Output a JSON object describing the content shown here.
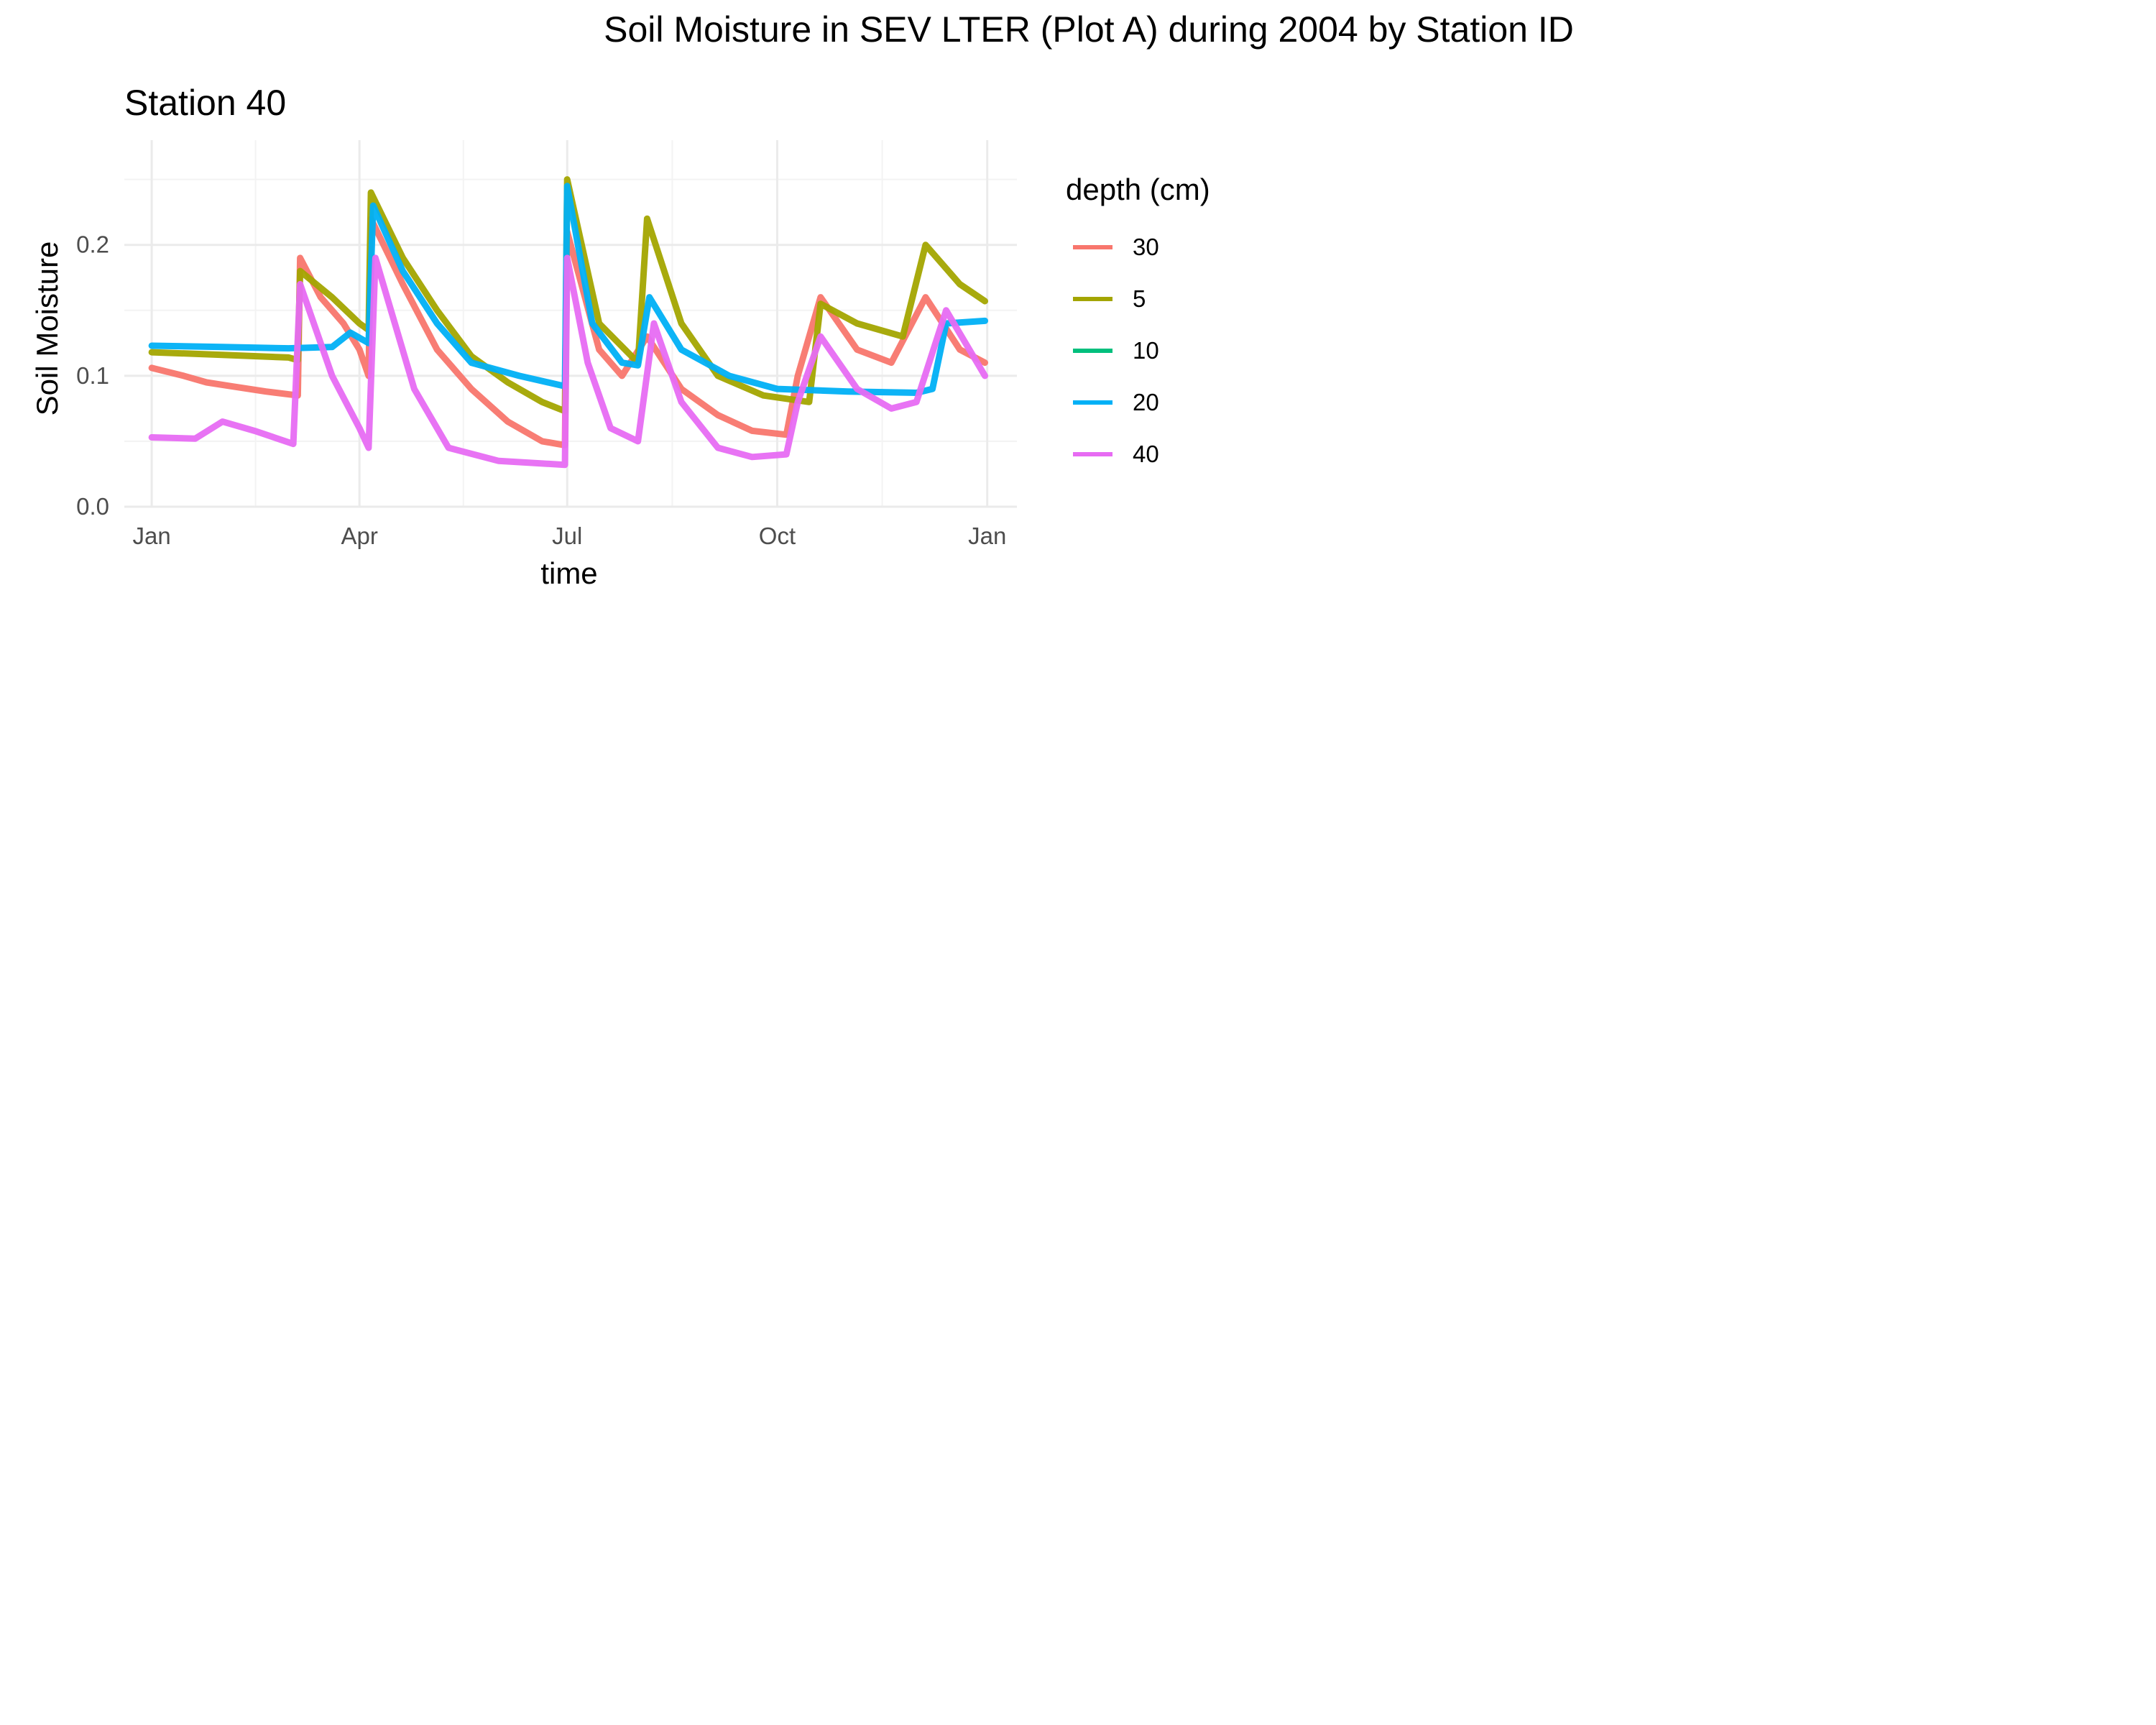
{
  "chart_data": {
    "type": "line",
    "title": "Soil Moisture in SEV LTER (Plot A) during 2004 by Station ID",
    "subtitle": "Station  40",
    "xlabel": "time",
    "ylabel": "Soil Moisture",
    "x_ticks": [
      {
        "label": "Jan",
        "date": "2004-01-01"
      },
      {
        "label": "Apr",
        "date": "2004-04-01"
      },
      {
        "label": "Jul",
        "date": "2004-07-01"
      },
      {
        "label": "Oct",
        "date": "2004-10-01"
      },
      {
        "label": "Jan",
        "date": "2005-01-01"
      }
    ],
    "x_range": [
      "2003-12-20",
      "2005-01-14"
    ],
    "y_ticks": [
      "0.0",
      "0.1",
      "0.2"
    ],
    "ylim": [
      0,
      0.28
    ],
    "grid": true,
    "legend": {
      "title": "depth (cm)",
      "placement": "right"
    },
    "series": [
      {
        "name": "30",
        "color": "#F8766D",
        "points": [
          [
            "2004-01-01",
            0.106
          ],
          [
            "2004-01-15",
            0.1
          ],
          [
            "2004-01-25",
            0.095
          ],
          [
            "2004-02-05",
            0.092
          ],
          [
            "2004-02-20",
            0.088
          ],
          [
            "2004-03-05",
            0.085
          ],
          [
            "2004-03-06",
            0.19
          ],
          [
            "2004-03-15",
            0.16
          ],
          [
            "2004-03-25",
            0.14
          ],
          [
            "2004-04-01",
            0.12
          ],
          [
            "2004-04-05",
            0.1
          ],
          [
            "2004-04-06",
            0.22
          ],
          [
            "2004-04-20",
            0.17
          ],
          [
            "2004-05-05",
            0.12
          ],
          [
            "2004-05-20",
            0.09
          ],
          [
            "2004-06-05",
            0.065
          ],
          [
            "2004-06-20",
            0.05
          ],
          [
            "2004-06-30",
            0.047
          ],
          [
            "2004-07-01",
            0.21
          ],
          [
            "2004-07-15",
            0.12
          ],
          [
            "2004-07-25",
            0.1
          ],
          [
            "2004-08-05",
            0.13
          ],
          [
            "2004-08-20",
            0.09
          ],
          [
            "2004-09-05",
            0.07
          ],
          [
            "2004-09-20",
            0.058
          ],
          [
            "2004-10-05",
            0.055
          ],
          [
            "2004-10-10",
            0.1
          ],
          [
            "2004-10-20",
            0.16
          ],
          [
            "2004-11-05",
            0.12
          ],
          [
            "2004-11-20",
            0.11
          ],
          [
            "2004-12-05",
            0.16
          ],
          [
            "2004-12-20",
            0.12
          ],
          [
            "2004-12-31",
            0.11
          ]
        ]
      },
      {
        "name": "5",
        "color": "#A3A500",
        "points": [
          [
            "2004-01-01",
            0.118
          ],
          [
            "2004-02-01",
            0.116
          ],
          [
            "2004-03-01",
            0.114
          ],
          [
            "2004-03-05",
            0.112
          ],
          [
            "2004-03-06",
            0.18
          ],
          [
            "2004-03-20",
            0.16
          ],
          [
            "2004-04-01",
            0.14
          ],
          [
            "2004-04-05",
            0.135
          ],
          [
            "2004-04-06",
            0.24
          ],
          [
            "2004-04-20",
            0.19
          ],
          [
            "2004-05-05",
            0.15
          ],
          [
            "2004-05-20",
            0.115
          ],
          [
            "2004-06-05",
            0.095
          ],
          [
            "2004-06-20",
            0.08
          ],
          [
            "2004-06-30",
            0.073
          ],
          [
            "2004-07-01",
            0.25
          ],
          [
            "2004-07-15",
            0.14
          ],
          [
            "2004-08-01",
            0.11
          ],
          [
            "2004-08-05",
            0.22
          ],
          [
            "2004-08-20",
            0.14
          ],
          [
            "2004-09-05",
            0.1
          ],
          [
            "2004-09-25",
            0.085
          ],
          [
            "2004-10-15",
            0.08
          ],
          [
            "2004-10-20",
            0.155
          ],
          [
            "2004-11-05",
            0.14
          ],
          [
            "2004-11-25",
            0.13
          ],
          [
            "2004-12-05",
            0.2
          ],
          [
            "2004-12-20",
            0.17
          ],
          [
            "2004-12-31",
            0.157
          ]
        ]
      },
      {
        "name": "10",
        "color": "#00BF7D",
        "points": []
      },
      {
        "name": "20",
        "color": "#00B0F6",
        "points": [
          [
            "2004-01-01",
            0.123
          ],
          [
            "2004-02-01",
            0.122
          ],
          [
            "2004-03-01",
            0.121
          ],
          [
            "2004-03-20",
            0.122
          ],
          [
            "2004-03-28",
            0.133
          ],
          [
            "2004-04-05",
            0.125
          ],
          [
            "2004-04-07",
            0.23
          ],
          [
            "2004-04-20",
            0.18
          ],
          [
            "2004-05-05",
            0.14
          ],
          [
            "2004-05-20",
            0.11
          ],
          [
            "2004-06-10",
            0.1
          ],
          [
            "2004-06-30",
            0.092
          ],
          [
            "2004-07-01",
            0.245
          ],
          [
            "2004-07-12",
            0.14
          ],
          [
            "2004-07-25",
            0.11
          ],
          [
            "2004-08-01",
            0.108
          ],
          [
            "2004-08-06",
            0.16
          ],
          [
            "2004-08-20",
            0.12
          ],
          [
            "2004-09-10",
            0.1
          ],
          [
            "2004-10-01",
            0.09
          ],
          [
            "2004-11-01",
            0.088
          ],
          [
            "2004-12-01",
            0.087
          ],
          [
            "2004-12-08",
            0.09
          ],
          [
            "2004-12-14",
            0.14
          ],
          [
            "2004-12-31",
            0.142
          ]
        ]
      },
      {
        "name": "40",
        "color": "#E76BF3",
        "points": [
          [
            "2004-01-01",
            0.053
          ],
          [
            "2004-01-20",
            0.052
          ],
          [
            "2004-02-01",
            0.065
          ],
          [
            "2004-02-15",
            0.058
          ],
          [
            "2004-03-03",
            0.048
          ],
          [
            "2004-03-06",
            0.17
          ],
          [
            "2004-03-20",
            0.1
          ],
          [
            "2004-04-01",
            0.06
          ],
          [
            "2004-04-05",
            0.045
          ],
          [
            "2004-04-08",
            0.19
          ],
          [
            "2004-04-25",
            0.09
          ],
          [
            "2004-05-10",
            0.045
          ],
          [
            "2004-06-01",
            0.035
          ],
          [
            "2004-06-30",
            0.032
          ],
          [
            "2004-07-01",
            0.19
          ],
          [
            "2004-07-10",
            0.11
          ],
          [
            "2004-07-20",
            0.06
          ],
          [
            "2004-08-01",
            0.05
          ],
          [
            "2004-08-08",
            0.14
          ],
          [
            "2004-08-20",
            0.08
          ],
          [
            "2004-09-05",
            0.045
          ],
          [
            "2004-09-20",
            0.038
          ],
          [
            "2004-10-05",
            0.04
          ],
          [
            "2004-10-10",
            0.08
          ],
          [
            "2004-10-20",
            0.13
          ],
          [
            "2004-11-05",
            0.09
          ],
          [
            "2004-11-20",
            0.075
          ],
          [
            "2004-12-01",
            0.08
          ],
          [
            "2004-12-14",
            0.15
          ],
          [
            "2004-12-31",
            0.1
          ]
        ]
      }
    ]
  }
}
